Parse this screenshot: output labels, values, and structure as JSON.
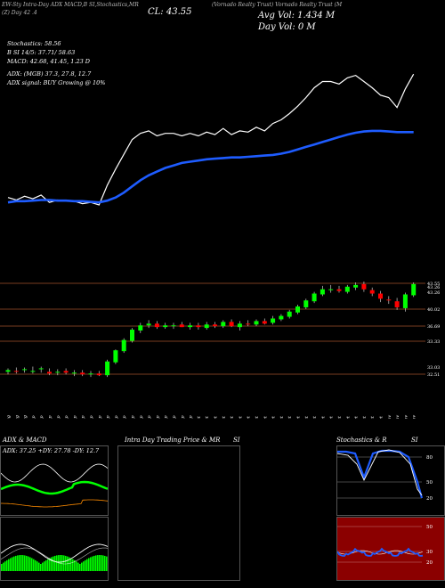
{
  "header": {
    "line1": "EW-Sty Intra-Day ADX MACD,B SI,Stochastics,MR",
    "vol_label": "Avg Vol: 1.434  M",
    "close_label": "CL: 43.55",
    "day_vol_label": "Day Vol: 0  M",
    "left_small": "(Z) Day  42 .4",
    "title_small": "(Vornado Realty Trust) Vornado Realty Trust (M"
  },
  "indicators": {
    "stochastics": "Stochastics: 58.56",
    "si": "B           SI 14/5: 37.71/ 58.63",
    "macd": "MACD: 42.68, 41.45, 1.23  D",
    "adx": "ADX:                    (MGB) 37.3, 27.8, 12.7",
    "adx_signal": "ADX  signal:                          BUY Growing  @ 10%"
  },
  "price_levels": [
    "43.55",
    "43.26",
    "43.26",
    "40.02",
    "36.69",
    "33.33",
    "33.03",
    "32.51"
  ],
  "dates": [
    "29 Aug",
    "30 Aug",
    "31 Aug",
    "03 Sep",
    "04 Sep",
    "05 Sep",
    "06 Sep",
    "07 Sep",
    "10 Sep",
    "11 Sep",
    "12 Sep",
    "13 Sep",
    "14 Sep",
    "17 Sep",
    "18 Sep",
    "19 Sep",
    "20 Sep",
    "21 Sep",
    "24 Sep",
    "25 Sep",
    "26 Sep",
    "27 Sep",
    "28 Sep",
    "01 Oct",
    "02 Oct",
    "03 Oct",
    "04 Oct",
    "05 Oct",
    "08 Oct",
    "09 Oct",
    "10 Oct",
    "11 Oct",
    "12 Oct",
    "15 Oct",
    "16 Oct",
    "17 Oct",
    "18 Oct",
    "19 Oct",
    "22 Oct",
    "23 Oct",
    "24 Oct",
    "25 Oct",
    "26 Oct",
    "29 Oct",
    "30 Oct",
    "31 Oct",
    "01 Nov",
    "02 Nov",
    "05 Nov",
    "06 Nov"
  ],
  "panels": {
    "adx_title": "ADX  & MACD",
    "adx_readout": "ADX: 37.25  +DY: 27.78  -DY: 12.7",
    "intraday_title": "Intra Day Trading Price  & MR",
    "intraday_si": "SI",
    "stoch_title": "Stochastics & R",
    "stoch_si": "SI",
    "stoch_levels": [
      "80",
      "50",
      "20"
    ],
    "mr_levels": [
      "50",
      "30",
      "20"
    ]
  },
  "colors": {
    "up": "#00ff00",
    "down": "#ff0000",
    "ma": "#1e5cff",
    "line": "#ffffff",
    "level": "#a0522d"
  },
  "chart_data": {
    "type": "candlestick",
    "x": [
      "29 Aug",
      "30 Aug",
      "31 Aug",
      "03 Sep",
      "04 Sep",
      "05 Sep",
      "06 Sep",
      "07 Sep",
      "10 Sep",
      "11 Sep",
      "12 Sep",
      "13 Sep",
      "14 Sep",
      "17 Sep",
      "18 Sep",
      "19 Sep",
      "20 Sep",
      "21 Sep",
      "24 Sep",
      "25 Sep",
      "26 Sep",
      "27 Sep",
      "28 Sep",
      "01 Oct",
      "02 Oct",
      "03 Oct",
      "04 Oct",
      "05 Oct",
      "08 Oct",
      "09 Oct",
      "10 Oct",
      "11 Oct",
      "12 Oct",
      "15 Oct",
      "16 Oct",
      "17 Oct",
      "18 Oct",
      "19 Oct",
      "22 Oct",
      "23 Oct",
      "24 Oct",
      "25 Oct",
      "26 Oct",
      "29 Oct",
      "30 Oct",
      "31 Oct",
      "01 Nov",
      "02 Nov",
      "05 Nov",
      "06 Nov"
    ],
    "open": [
      33.4,
      33.5,
      33.6,
      33.5,
      33.7,
      33.4,
      33.3,
      33.5,
      33.2,
      33.3,
      33.1,
      33.2,
      33.0,
      34.5,
      35.8,
      37.0,
      38.2,
      38.8,
      39.0,
      38.6,
      38.7,
      38.9,
      38.6,
      38.8,
      38.5,
      38.9,
      38.7,
      39.2,
      38.6,
      39.0,
      38.9,
      39.3,
      39.1,
      39.5,
      39.8,
      40.3,
      40.9,
      41.6,
      42.4,
      42.9,
      43.0,
      42.7,
      43.2,
      43.6,
      42.9,
      42.5,
      41.8,
      41.6,
      40.8,
      42.3
    ],
    "high": [
      33.8,
      33.9,
      33.9,
      34.0,
      34.0,
      33.8,
      33.7,
      33.8,
      33.6,
      33.6,
      33.5,
      33.5,
      34.8,
      36.0,
      37.3,
      38.5,
      39.1,
      39.4,
      39.3,
      39.1,
      39.1,
      39.2,
      39.1,
      39.1,
      39.2,
      39.2,
      39.4,
      39.5,
      39.3,
      39.4,
      39.5,
      39.6,
      39.9,
      40.1,
      40.6,
      41.2,
      41.9,
      42.7,
      43.4,
      43.5,
      43.4,
      43.5,
      43.8,
      43.9,
      43.2,
      42.8,
      42.2,
      42.0,
      42.6,
      43.8
    ],
    "low": [
      33.1,
      33.2,
      33.3,
      33.2,
      33.3,
      33.0,
      33.0,
      33.1,
      32.9,
      32.9,
      32.8,
      32.9,
      32.8,
      34.3,
      35.6,
      36.8,
      37.9,
      38.5,
      38.4,
      38.4,
      38.4,
      38.6,
      38.3,
      38.3,
      38.3,
      38.5,
      38.5,
      38.6,
      38.2,
      38.7,
      38.7,
      38.9,
      38.9,
      39.3,
      39.6,
      40.1,
      40.7,
      41.4,
      42.2,
      42.6,
      42.6,
      42.5,
      42.9,
      42.7,
      42.2,
      41.5,
      41.3,
      40.6,
      40.4,
      42.1
    ],
    "close": [
      33.6,
      33.4,
      33.7,
      33.5,
      33.8,
      33.2,
      33.4,
      33.3,
      33.3,
      33.1,
      33.2,
      33.0,
      34.6,
      35.9,
      37.1,
      38.3,
      38.8,
      39.0,
      38.6,
      38.8,
      38.8,
      38.6,
      38.8,
      38.6,
      38.9,
      38.7,
      39.2,
      38.7,
      39.0,
      38.9,
      39.3,
      39.0,
      39.6,
      39.9,
      40.4,
      41.0,
      41.7,
      42.5,
      43.0,
      43.0,
      42.8,
      43.3,
      43.5,
      43.0,
      42.5,
      41.9,
      41.7,
      40.9,
      42.4,
      43.6
    ],
    "ylim": [
      32.5,
      43.9
    ],
    "ma_line": [
      33.2,
      33.3,
      33.3,
      33.35,
      33.4,
      33.4,
      33.35,
      33.35,
      33.3,
      33.3,
      33.25,
      33.2,
      33.35,
      33.6,
      34.0,
      34.5,
      35.0,
      35.4,
      35.7,
      36.0,
      36.2,
      36.4,
      36.5,
      36.6,
      36.7,
      36.75,
      36.8,
      36.85,
      36.85,
      36.9,
      36.95,
      37.0,
      37.05,
      37.15,
      37.3,
      37.5,
      37.7,
      37.9,
      38.1,
      38.3,
      38.5,
      38.7,
      38.85,
      38.95,
      39.0,
      39.0,
      38.95,
      38.9,
      38.9,
      38.9
    ]
  }
}
